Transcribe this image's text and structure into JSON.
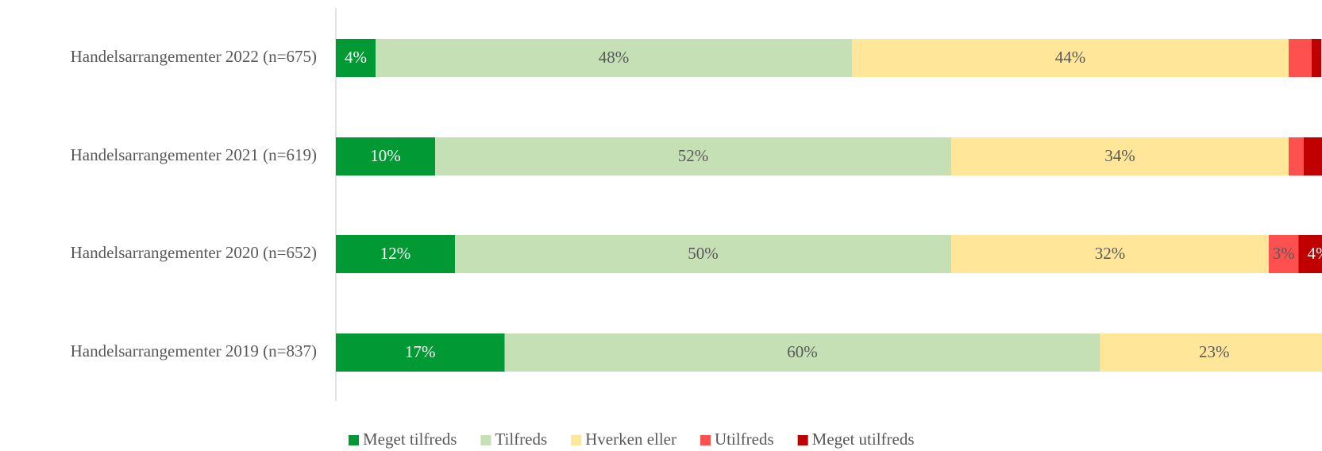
{
  "chart_data": {
    "type": "stacked_bar_horizontal",
    "categories": [
      "Handelsarrangementer 2022 (n=675)",
      "Handelsarrangementer 2021 (n=619)",
      "Handelsarrangementer 2020 (n=652)",
      "Handelsarrangementer 2019 (n=837)"
    ],
    "xlim": [
      0,
      100
    ],
    "legend": "bottom",
    "series": [
      {
        "name": "Meget tilfreds",
        "color": "#009933",
        "label_color": "#ffffff",
        "values": [
          4,
          10,
          12,
          17
        ],
        "value_labels": [
          "4%",
          "10%",
          "12%",
          "17%"
        ]
      },
      {
        "name": "Tilfreds",
        "color": "#c5e0b4",
        "label_color": "#595959",
        "values": [
          48,
          52,
          50,
          60
        ],
        "value_labels": [
          "48%",
          "52%",
          "50%",
          "60%"
        ]
      },
      {
        "name": "Hverken eller",
        "color": "#ffe699",
        "label_color": "#595959",
        "values": [
          44,
          34,
          32,
          23
        ],
        "value_labels": [
          "44%",
          "34%",
          "32%",
          "23%"
        ]
      },
      {
        "name": "Utilfreds",
        "color": "#ff5050",
        "label_color": "#595959",
        "values": [
          2.3,
          1.5,
          3,
          1
        ],
        "value_labels": [
          null,
          null,
          "3%",
          null
        ]
      },
      {
        "name": "Meget utilfreds",
        "color": "#c00000",
        "label_color": "#ffffff",
        "values": [
          1,
          2.5,
          4,
          0
        ],
        "value_labels": [
          null,
          null,
          "4%",
          null
        ]
      }
    ]
  }
}
